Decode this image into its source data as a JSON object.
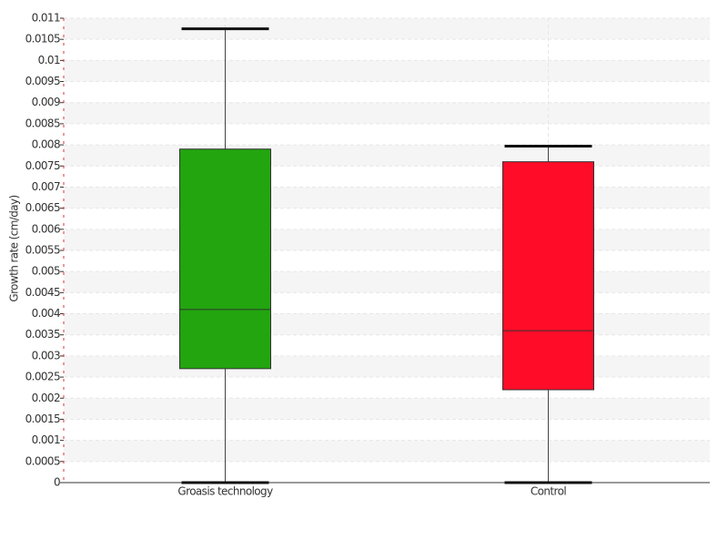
{
  "chart_data": {
    "type": "box",
    "y_label": "Growth rate (cm/day)",
    "categories": [
      "Groasis technology",
      "Control"
    ],
    "boxes": [
      {
        "min": 0,
        "q1": 0.0027,
        "median": 0.0041,
        "q3": 0.0079,
        "max": 0.01075,
        "color": "#22a50f"
      },
      {
        "min": 0,
        "q1": 0.0022,
        "median": 0.0036,
        "q3": 0.0076,
        "max": 0.00797,
        "color": "#ff0d28"
      }
    ],
    "ylim": [
      0,
      0.011
    ],
    "yticks": [
      0,
      0.0005,
      0.001,
      0.0015,
      0.002,
      0.0025,
      0.003,
      0.0035,
      0.004,
      0.0045,
      0.005,
      0.0055,
      0.006,
      0.0065,
      0.007,
      0.0075,
      0.008,
      0.0085,
      0.009,
      0.0095,
      0.01,
      0.0105,
      0.011
    ],
    "grid": true
  }
}
